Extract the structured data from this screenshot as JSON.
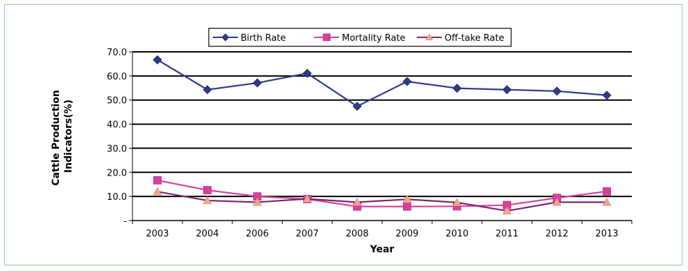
{
  "chart_data": {
    "type": "line",
    "categories": [
      "2003",
      "2004",
      "2006",
      "2007",
      "2008",
      "2009",
      "2010",
      "2011",
      "2012",
      "2013"
    ],
    "series": [
      {
        "name": "Birth Rate",
        "color": "#2e3a8c",
        "marker": "diamond",
        "values": [
          66.7,
          54.3,
          57.1,
          61.1,
          47.4,
          57.7,
          54.9,
          54.3,
          53.7,
          52.0
        ]
      },
      {
        "name": "Mortality Rate",
        "color": "#d9409b",
        "marker": "square",
        "values": [
          16.7,
          12.6,
          10.0,
          8.9,
          5.8,
          5.8,
          5.9,
          6.4,
          9.4,
          12.1
        ]
      },
      {
        "name": "Off-take Rate",
        "color": "#7a2570",
        "marker": "triangle",
        "marker_color": "#f2a58a",
        "values": [
          12.0,
          8.3,
          7.6,
          9.0,
          7.6,
          8.8,
          7.5,
          4.0,
          7.6,
          7.6
        ]
      }
    ],
    "y_ticks": [
      "-",
      "10.0",
      "20.0",
      "30.0",
      "40.0",
      "50.0",
      "60.0",
      "70.0"
    ],
    "ylim": [
      0,
      70
    ],
    "xlabel": "Year",
    "ylabel_lines": [
      "Cattle Production",
      "Indicators(%)"
    ],
    "grid": "horizontal",
    "legend_position": "top"
  }
}
